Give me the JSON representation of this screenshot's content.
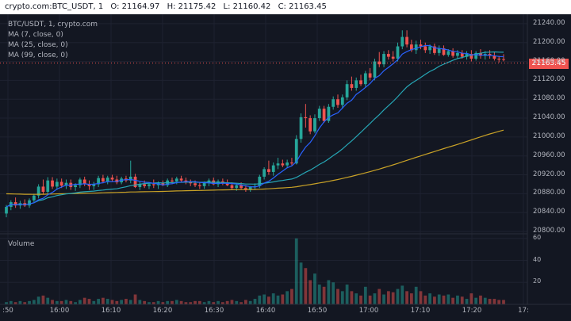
{
  "header": {
    "symbol": "crypto.com:BTC_USDT, 1",
    "open": "O: 21164.97",
    "high": "H: 21175.42",
    "low": "L: 21160.42",
    "close": "C: 21163.45"
  },
  "legend": {
    "title": "BTC/USDT, 1, crypto.com",
    "ma7": "MA (7, close, 0)",
    "ma25": "MA (25, close, 0)",
    "ma99": "MA (99, close, 0)"
  },
  "volume_label": "Volume",
  "last_price_label": "21163.45",
  "colors": {
    "background": "#131722",
    "up": "#26a69a",
    "down": "#ef5350",
    "ma7": "#2962ff",
    "ma25": "#26a6b5",
    "ma99": "#c9a227"
  },
  "chart_data": {
    "type": "candlestick",
    "price_ticks": [
      "21240.00",
      "21200.00",
      "21160.00",
      "21120.00",
      "21080.00",
      "21040.00",
      "21000.00",
      "20960.00",
      "20920.00",
      "20880.00",
      "20840.00",
      "20800.00"
    ],
    "volume_ticks": [
      "60",
      "40",
      "20"
    ],
    "time_ticks": [
      ":50",
      "16:00",
      "16:10",
      "16:20",
      "16:30",
      "16:40",
      "16:50",
      "17:00",
      "17:10",
      "17:20",
      "17:"
    ],
    "ylim": [
      20795,
      21260
    ],
    "volume_ylim": [
      0,
      62
    ],
    "last_price": 21163.45,
    "candles": [
      [
        20838,
        20856,
        20830,
        20852,
        2
      ],
      [
        20852,
        20866,
        20845,
        20862,
        3
      ],
      [
        20862,
        20872,
        20850,
        20855,
        2
      ],
      [
        20855,
        20865,
        20848,
        20860,
        3
      ],
      [
        20860,
        20868,
        20852,
        20855,
        2
      ],
      [
        20855,
        20870,
        20850,
        20866,
        3
      ],
      [
        20866,
        20880,
        20860,
        20876,
        4
      ],
      [
        20876,
        20900,
        20870,
        20895,
        7
      ],
      [
        20895,
        20910,
        20878,
        20884,
        8
      ],
      [
        20884,
        20915,
        20880,
        20908,
        6
      ],
      [
        20908,
        20915,
        20890,
        20895,
        4
      ],
      [
        20895,
        20912,
        20888,
        20905,
        3
      ],
      [
        20905,
        20912,
        20892,
        20897,
        3
      ],
      [
        20897,
        20910,
        20890,
        20903,
        4
      ],
      [
        20903,
        20910,
        20888,
        20894,
        3
      ],
      [
        20894,
        20902,
        20886,
        20898,
        2
      ],
      [
        20898,
        20914,
        20892,
        20910,
        4
      ],
      [
        20910,
        20916,
        20896,
        20900,
        6
      ],
      [
        20900,
        20908,
        20888,
        20896,
        5
      ],
      [
        20896,
        20905,
        20888,
        20900,
        3
      ],
      [
        20900,
        20918,
        20894,
        20913,
        5
      ],
      [
        20913,
        20920,
        20902,
        20906,
        6
      ],
      [
        20906,
        20918,
        20900,
        20914,
        5
      ],
      [
        20914,
        20920,
        20906,
        20910,
        4
      ],
      [
        20910,
        20918,
        20900,
        20904,
        3
      ],
      [
        20904,
        20916,
        20900,
        20912,
        4
      ],
      [
        20912,
        20918,
        20904,
        20908,
        5
      ],
      [
        20908,
        20950,
        20902,
        20916,
        4
      ],
      [
        20916,
        20922,
        20892,
        20894,
        9
      ],
      [
        20894,
        20905,
        20888,
        20900,
        4
      ],
      [
        20900,
        20908,
        20892,
        20896,
        3
      ],
      [
        20896,
        20904,
        20890,
        20900,
        2
      ],
      [
        20900,
        20910,
        20892,
        20898,
        2
      ],
      [
        20898,
        20906,
        20890,
        20902,
        3
      ],
      [
        20902,
        20908,
        20896,
        20898,
        2
      ],
      [
        20898,
        20912,
        20894,
        20908,
        3
      ],
      [
        20908,
        20914,
        20900,
        20906,
        3
      ],
      [
        20906,
        20916,
        20900,
        20912,
        4
      ],
      [
        20912,
        20918,
        20904,
        20908,
        3
      ],
      [
        20908,
        20914,
        20900,
        20904,
        2
      ],
      [
        20904,
        20910,
        20896,
        20902,
        2
      ],
      [
        20902,
        20908,
        20894,
        20898,
        3
      ],
      [
        20898,
        20904,
        20890,
        20896,
        3
      ],
      [
        20896,
        20906,
        20890,
        20903,
        2
      ],
      [
        20903,
        20912,
        20896,
        20908,
        3
      ],
      [
        20908,
        20914,
        20898,
        20900,
        2
      ],
      [
        20900,
        20910,
        20894,
        20906,
        3
      ],
      [
        20906,
        20912,
        20898,
        20902,
        2
      ],
      [
        20902,
        20910,
        20896,
        20898,
        3
      ],
      [
        20898,
        20904,
        20888,
        20892,
        4
      ],
      [
        20892,
        20900,
        20886,
        20898,
        3
      ],
      [
        20898,
        20904,
        20888,
        20892,
        2
      ],
      [
        20892,
        20898,
        20884,
        20888,
        4
      ],
      [
        20888,
        20896,
        20884,
        20894,
        3
      ],
      [
        20894,
        20902,
        20888,
        20896,
        5
      ],
      [
        20896,
        20920,
        20892,
        20916,
        8
      ],
      [
        20916,
        20936,
        20910,
        20932,
        9
      ],
      [
        20932,
        20950,
        20920,
        20926,
        7
      ],
      [
        20926,
        20946,
        20918,
        20940,
        10
      ],
      [
        20940,
        20956,
        20932,
        20944,
        8
      ],
      [
        20944,
        20952,
        20936,
        20940,
        9
      ],
      [
        20940,
        20952,
        20934,
        20946,
        12
      ],
      [
        20946,
        20956,
        20940,
        20944,
        14
      ],
      [
        20944,
        21004,
        20942,
        20996,
        60
      ],
      [
        20996,
        21050,
        20988,
        21042,
        38
      ],
      [
        21042,
        21070,
        21020,
        21040,
        33
      ],
      [
        21040,
        21046,
        21006,
        21012,
        22
      ],
      [
        21012,
        21048,
        21008,
        21040,
        28
      ],
      [
        21040,
        21066,
        21034,
        21060,
        18
      ],
      [
        21060,
        21066,
        21030,
        21034,
        16
      ],
      [
        21034,
        21070,
        21030,
        21064,
        22
      ],
      [
        21064,
        21086,
        21058,
        21080,
        20
      ],
      [
        21080,
        21090,
        21062,
        21068,
        14
      ],
      [
        21068,
        21090,
        21060,
        21084,
        12
      ],
      [
        21084,
        21120,
        21078,
        21112,
        18
      ],
      [
        21112,
        21128,
        21098,
        21104,
        12
      ],
      [
        21104,
        21126,
        21098,
        21120,
        10
      ],
      [
        21120,
        21132,
        21108,
        21112,
        8
      ],
      [
        21112,
        21140,
        21106,
        21135,
        16
      ],
      [
        21135,
        21146,
        21120,
        21126,
        8
      ],
      [
        21126,
        21166,
        21120,
        21160,
        10
      ],
      [
        21160,
        21180,
        21148,
        21154,
        14
      ],
      [
        21154,
        21182,
        21148,
        21176,
        9
      ],
      [
        21176,
        21184,
        21164,
        21170,
        12
      ],
      [
        21170,
        21182,
        21160,
        21166,
        11
      ],
      [
        21166,
        21200,
        21160,
        21192,
        14
      ],
      [
        21192,
        21226,
        21186,
        21212,
        17
      ],
      [
        21212,
        21226,
        21190,
        21196,
        12
      ],
      [
        21196,
        21206,
        21180,
        21184,
        10
      ],
      [
        21184,
        21204,
        21176,
        21196,
        16
      ],
      [
        21196,
        21206,
        21186,
        21192,
        12
      ],
      [
        21192,
        21200,
        21178,
        21184,
        8
      ],
      [
        21184,
        21196,
        21176,
        21192,
        10
      ],
      [
        21192,
        21198,
        21174,
        21178,
        7
      ],
      [
        21178,
        21194,
        21172,
        21188,
        9
      ],
      [
        21188,
        21194,
        21172,
        21174,
        8
      ],
      [
        21174,
        21186,
        21170,
        21182,
        9
      ],
      [
        21182,
        21188,
        21168,
        21172,
        6
      ],
      [
        21172,
        21184,
        21166,
        21178,
        8
      ],
      [
        21178,
        21184,
        21166,
        21170,
        7
      ],
      [
        21170,
        21182,
        21164,
        21176,
        5
      ],
      [
        21176,
        21184,
        21160,
        21166,
        10
      ],
      [
        21166,
        21182,
        21162,
        21178,
        6
      ],
      [
        21178,
        21186,
        21166,
        21172,
        8
      ],
      [
        21172,
        21182,
        21164,
        21176,
        6
      ],
      [
        21176,
        21184,
        21166,
        21172,
        5
      ],
      [
        21172,
        21180,
        21162,
        21166,
        5
      ],
      [
        21166,
        21172,
        21158,
        21164,
        4
      ],
      [
        21164.97,
        21175.42,
        21160.42,
        21163.45,
        4
      ]
    ]
  }
}
